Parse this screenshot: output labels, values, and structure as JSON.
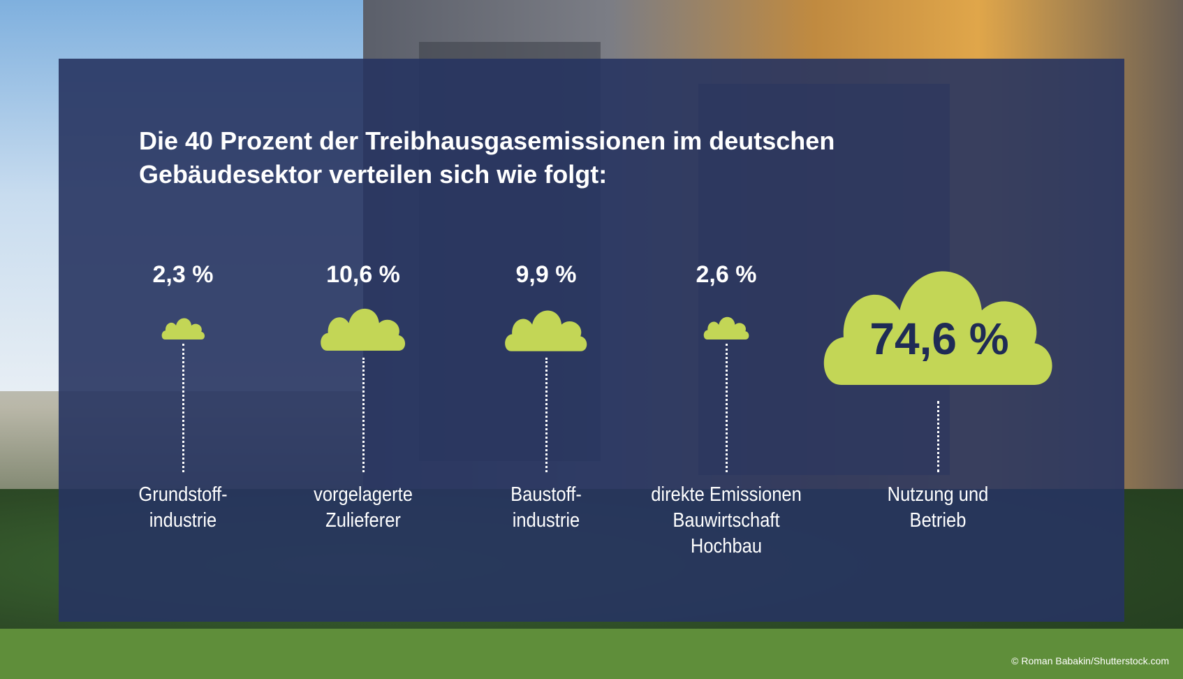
{
  "title_line1": "Die 40 Prozent der Treibhausgasemissionen im deutschen",
  "title_line2": "Gebäudesektor verteilen sich wie folgt:",
  "colors": {
    "panel": "#273460",
    "cloud": "#c3d656",
    "text": "#ffffff",
    "big_value_text": "#1f2b55"
  },
  "credit": "© Roman Babakin/Shutterstock.com",
  "chart_data": {
    "type": "pictogram",
    "title": "Die 40 Prozent der Treibhausgasemissionen im deutschen Gebäudesektor verteilen sich wie folgt:",
    "unit": "%",
    "categories": [
      "Grundstoffindustrie",
      "vorgelagerte Zulieferer",
      "Baustoffindustrie",
      "direkte Emissionen Bauwirtschaft Hochbau",
      "Nutzung und Betrieb"
    ],
    "values": [
      2.3,
      10.6,
      9.9,
      2.6,
      74.6
    ],
    "value_labels": [
      "2,3 %",
      "10,6 %",
      "9,9 %",
      "2,6 %",
      "74,6 %"
    ],
    "display_labels": [
      "Grundstoff-\nindustrie",
      "vorgelagerte\nZulieferer",
      "Baustoff-\nindustrie",
      "direkte Emissionen\nBauwirtschaft\nHochbau",
      "Nutzung und\nBetrieb"
    ]
  }
}
